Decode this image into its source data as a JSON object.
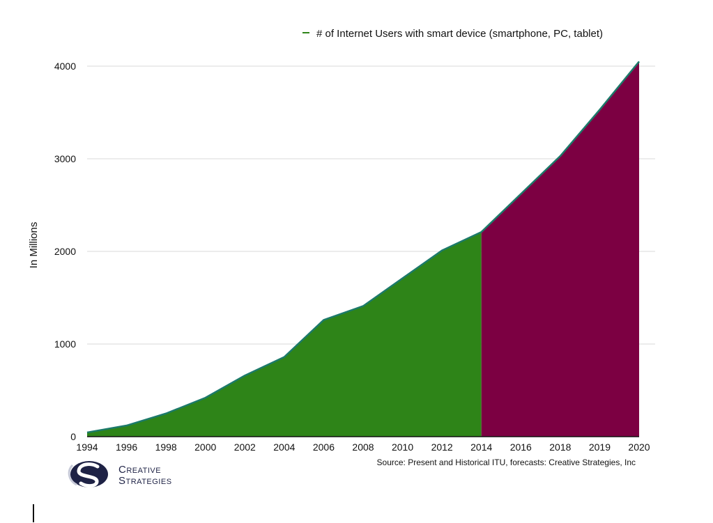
{
  "chart_data": {
    "type": "area",
    "title": "",
    "xlabel": "",
    "ylabel": "In Millions",
    "ylim": [
      0,
      4000
    ],
    "yticks": [
      0,
      1000,
      2000,
      3000,
      4000
    ],
    "grid": true,
    "legend": {
      "position": "top-center",
      "entries": [
        "# of Internet Users with smart device (smartphone, PC, tablet)"
      ]
    },
    "categories": [
      "1994",
      "1996",
      "1998",
      "2000",
      "2002",
      "2004",
      "2006",
      "2008",
      "2010",
      "2012",
      "2014",
      "2016",
      "2018",
      "2019",
      "2020"
    ],
    "series": [
      {
        "name": "# of Internet Users with smart device (smartphone, PC, tablet)",
        "values": [
          45,
          120,
          250,
          420,
          660,
          860,
          1260,
          1410,
          1710,
          2010,
          2210,
          2620,
          3030,
          3530,
          4050
        ],
        "historical_color": "#2e8418",
        "forecast_color": "#7c0042",
        "line_color": "#1c7a6a",
        "forecast_start": "2014"
      }
    ],
    "source": "Source: Present and Historical ITU, forecasts: Creative Strategies, Inc"
  },
  "logo": {
    "initials": "CS",
    "line1": "Creative",
    "line2": "Strategies",
    "color": "#1e2245"
  }
}
